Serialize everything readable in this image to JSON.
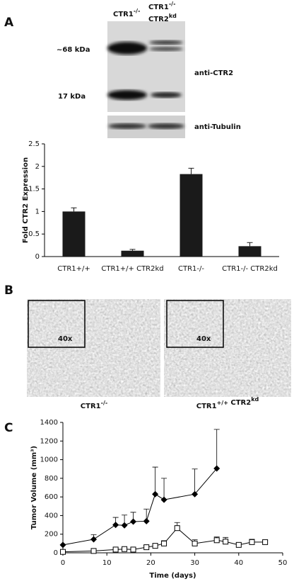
{
  "panel_labels": [
    "A",
    "B",
    "C"
  ],
  "panel_a": {
    "header": [
      [
        {
          "base": "CTR1",
          "sup": "-/-"
        }
      ],
      [
        {
          "base": "CTR1",
          "sup": "-/-"
        }
      ],
      [
        {
          "base": "CTR2",
          "sup": "kd"
        }
      ]
    ],
    "bands": [
      "~68 kDa",
      "17 kDa"
    ],
    "antibodies": [
      "anti-CTR2",
      "anti-Tubulin"
    ]
  },
  "panel_b": {
    "inset_labels": [
      "40x",
      "40x"
    ],
    "captions": [
      [
        {
          "base": "CTR1",
          "sup": "-/-"
        }
      ],
      [
        {
          "base": "CTR1",
          "sup": "+/+"
        },
        {
          "base": " CTR2",
          "sup": "kd"
        }
      ]
    ]
  },
  "chart_data": [
    {
      "type": "bar",
      "ylabel": "Fold CTR2 Expression",
      "categories": [
        "CTR1+/+",
        "CTR1+/+ CTR2kd",
        "CTR1-/-",
        "CTR1-/- CTR2kd"
      ],
      "values": [
        1.0,
        0.13,
        1.83,
        0.23
      ],
      "errors": [
        0.08,
        0.03,
        0.13,
        0.08
      ],
      "color": "#1a1a1a",
      "ylim": [
        0,
        2.5
      ],
      "yticks": [
        0,
        0.5,
        1,
        1.5,
        2,
        2.5
      ]
    },
    {
      "type": "line",
      "xlabel": "Time (days)",
      "ylabel": "Tumor Volume (mm³)",
      "xlim": [
        0,
        50
      ],
      "xticks": [
        0,
        10,
        20,
        30,
        40,
        50
      ],
      "ylim": [
        0,
        1400
      ],
      "yticks": [
        0,
        200,
        400,
        600,
        800,
        1000,
        1200,
        1400
      ],
      "series": [
        {
          "color": "#000000",
          "marker": "diamond",
          "x": [
            0,
            7,
            12,
            14,
            16,
            19,
            21,
            23,
            30,
            35
          ],
          "values": [
            85,
            145,
            300,
            295,
            335,
            340,
            630,
            570,
            630,
            905
          ],
          "errors": [
            0,
            50,
            80,
            110,
            100,
            130,
            290,
            230,
            270,
            420
          ]
        },
        {
          "color": "#000000",
          "marker": "square",
          "x": [
            0,
            7,
            12,
            14,
            16,
            19,
            21,
            23,
            26,
            30,
            35,
            37,
            40,
            43,
            46
          ],
          "values": [
            10,
            20,
            35,
            40,
            35,
            60,
            75,
            100,
            265,
            100,
            135,
            120,
            85,
            115,
            115
          ],
          "errors": [
            0,
            0,
            10,
            15,
            15,
            20,
            20,
            30,
            60,
            40,
            35,
            45,
            20,
            30,
            20
          ]
        }
      ]
    }
  ]
}
